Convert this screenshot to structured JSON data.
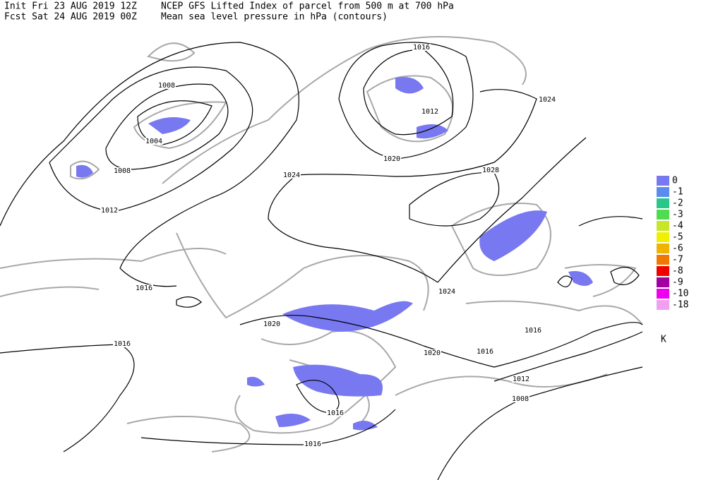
{
  "header": {
    "init": "Init  Fri 23 AUG 2019 12Z",
    "forecast": "Fcst Sat 24 AUG 2019 00Z",
    "title": "NCEP GFS Lifted Index of parcel from 500 m at 700 hPa",
    "subtitle": "Mean sea level pressure in hPa (contours)"
  },
  "contour_labels": [
    "1008",
    "1004",
    "1008",
    "1012",
    "1016",
    "1016",
    "1012",
    "1020",
    "1024",
    "1024",
    "1028",
    "1024",
    "1020",
    "1020",
    "1016",
    "1016",
    "1016",
    "1012",
    "1008",
    "1016",
    "1016"
  ],
  "legend": {
    "items": [
      {
        "label": "0",
        "color": "#7878f0"
      },
      {
        "label": "-1",
        "color": "#5a8cf0"
      },
      {
        "label": "-2",
        "color": "#28c88c"
      },
      {
        "label": "-3",
        "color": "#50dc50"
      },
      {
        "label": "-4",
        "color": "#c8e628"
      },
      {
        "label": "-5",
        "color": "#f0f000"
      },
      {
        "label": "-6",
        "color": "#f0b400"
      },
      {
        "label": "-7",
        "color": "#f07800"
      },
      {
        "label": "-8",
        "color": "#f00000"
      },
      {
        "label": "-9",
        "color": "#a000a0"
      },
      {
        "label": "-10",
        "color": "#f000f0"
      },
      {
        "label": "-18",
        "color": "#f0a0f0"
      }
    ],
    "unit": "K"
  }
}
